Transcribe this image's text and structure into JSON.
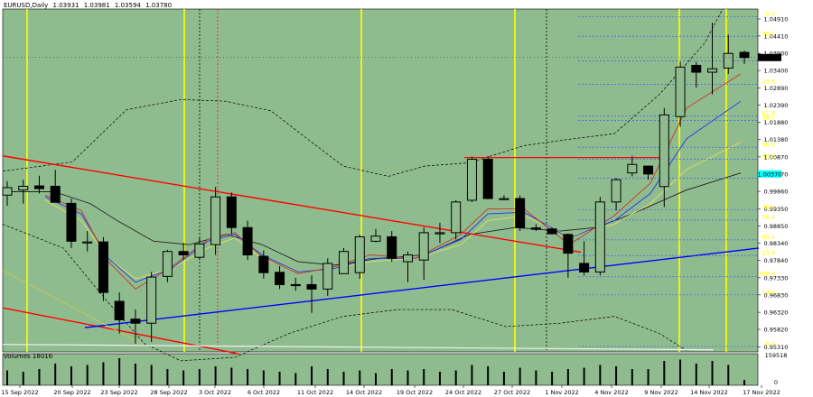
{
  "header": {
    "symbol": "EURUSD,Daily",
    "open": "1.03931",
    "high": "1.03981",
    "low": "1.03594",
    "close": "1.03780"
  },
  "volume": {
    "label": "Volumes",
    "value": "18016",
    "axis_max": "159518",
    "axis_min": "0"
  },
  "colors": {
    "background": "#8fbc8f",
    "candle": "#000000",
    "trendline_down": "#ff0000",
    "trendline_up": "#0000ff",
    "fib_line": "#3a5ff0",
    "fib_label": "#ffff00",
    "vertical_marker": "#ffff00",
    "price_tag": "#000000",
    "current_band": "#00ffff"
  },
  "chart_data": {
    "type": "candlestick",
    "x_labels": [
      "15 Sep 2022",
      "20 Sep 2022",
      "23 Sep 2022",
      "28 Sep 2022",
      "3 Oct 2022",
      "6 Oct 2022",
      "11 Oct 2022",
      "14 Oct 2022",
      "19 Oct 2022",
      "24 Oct 2022",
      "27 Oct 2022",
      "1 Nov 2022",
      "4 Nov 2022",
      "9 Nov 2022",
      "14 Nov 2022",
      "17 Nov 2022"
    ],
    "y_ticks": [
      "1.04910",
      "1.04410",
      "1.03900",
      "1.03400",
      "1.02890",
      "1.02390",
      "1.01880",
      "1.01380",
      "1.00870",
      "1.00370",
      "0.99860",
      "0.99350",
      "0.98850",
      "0.98340",
      "0.97840",
      "0.97330",
      "0.96830",
      "0.96320",
      "0.95820",
      "0.95310"
    ],
    "ylim": [
      0.9516,
      1.052
    ],
    "current_price": "1.03780",
    "highlight_price": "1.00370",
    "candles": [
      {
        "o": 0.9975,
        "h": 1.0016,
        "l": 0.9944,
        "c": 0.9997
      },
      {
        "o": 0.999,
        "h": 1.002,
        "l": 0.995,
        "c": 1.0001
      },
      {
        "o": 1.0002,
        "h": 1.0032,
        "l": 0.998,
        "c": 0.9994
      },
      {
        "o": 1.0001,
        "h": 1.0049,
        "l": 0.9955,
        "c": 0.9954
      },
      {
        "o": 0.9951,
        "h": 0.9965,
        "l": 0.982,
        "c": 0.984
      },
      {
        "o": 0.9838,
        "h": 0.987,
        "l": 0.981,
        "c": 0.9838
      },
      {
        "o": 0.9838,
        "h": 0.9852,
        "l": 0.9665,
        "c": 0.969
      },
      {
        "o": 0.9664,
        "h": 0.969,
        "l": 0.957,
        "c": 0.961
      },
      {
        "o": 0.9612,
        "h": 0.964,
        "l": 0.954,
        "c": 0.96
      },
      {
        "o": 0.96,
        "h": 0.975,
        "l": 0.9545,
        "c": 0.9735
      },
      {
        "o": 0.9737,
        "h": 0.9815,
        "l": 0.972,
        "c": 0.981
      },
      {
        "o": 0.981,
        "h": 0.9835,
        "l": 0.9785,
        "c": 0.98
      },
      {
        "o": 0.9793,
        "h": 0.985,
        "l": 0.9785,
        "c": 0.9832
      },
      {
        "o": 0.983,
        "h": 0.9999,
        "l": 0.98,
        "c": 0.997
      },
      {
        "o": 0.997,
        "h": 0.9983,
        "l": 0.986,
        "c": 0.988
      },
      {
        "o": 0.988,
        "h": 0.99,
        "l": 0.9785,
        "c": 0.98
      },
      {
        "o": 0.9796,
        "h": 0.9813,
        "l": 0.9731,
        "c": 0.9748
      },
      {
        "o": 0.9749,
        "h": 0.9767,
        "l": 0.97,
        "c": 0.9713
      },
      {
        "o": 0.9713,
        "h": 0.9733,
        "l": 0.9695,
        "c": 0.971
      },
      {
        "o": 0.9713,
        "h": 0.974,
        "l": 0.963,
        "c": 0.97
      },
      {
        "o": 0.97,
        "h": 0.979,
        "l": 0.968,
        "c": 0.9775
      },
      {
        "o": 0.9745,
        "h": 0.982,
        "l": 0.9745,
        "c": 0.981
      },
      {
        "o": 0.9748,
        "h": 0.9859,
        "l": 0.973,
        "c": 0.9853
      },
      {
        "o": 0.984,
        "h": 0.9876,
        "l": 0.9837,
        "c": 0.9855
      },
      {
        "o": 0.9853,
        "h": 0.987,
        "l": 0.978,
        "c": 0.979
      },
      {
        "o": 0.978,
        "h": 0.981,
        "l": 0.972,
        "c": 0.98
      },
      {
        "o": 0.9785,
        "h": 0.988,
        "l": 0.9727,
        "c": 0.9865
      },
      {
        "o": 0.9863,
        "h": 0.9894,
        "l": 0.9835,
        "c": 0.9865
      },
      {
        "o": 0.9865,
        "h": 0.996,
        "l": 0.9845,
        "c": 0.9955
      },
      {
        "o": 0.996,
        "h": 1.0088,
        "l": 0.9955,
        "c": 1.008
      },
      {
        "o": 1.008,
        "h": 1.009,
        "l": 0.9963,
        "c": 0.9965
      },
      {
        "o": 0.9963,
        "h": 0.9975,
        "l": 0.996,
        "c": 0.9965
      },
      {
        "o": 0.9965,
        "h": 0.9974,
        "l": 0.987,
        "c": 0.988
      },
      {
        "o": 0.9879,
        "h": 0.989,
        "l": 0.987,
        "c": 0.9875
      },
      {
        "o": 0.9876,
        "h": 0.988,
        "l": 0.986,
        "c": 0.9862
      },
      {
        "o": 0.986,
        "h": 0.9863,
        "l": 0.9733,
        "c": 0.9805
      },
      {
        "o": 0.9775,
        "h": 0.984,
        "l": 0.974,
        "c": 0.975
      },
      {
        "o": 0.975,
        "h": 0.997,
        "l": 0.974,
        "c": 0.9955
      },
      {
        "o": 0.9955,
        "h": 1.0025,
        "l": 0.993,
        "c": 1.002
      },
      {
        "o": 1.004,
        "h": 1.009,
        "l": 1.003,
        "c": 1.0065
      },
      {
        "o": 1.006,
        "h": 1.006,
        "l": 1.002,
        "c": 1.0037
      },
      {
        "o": 1.0,
        "h": 1.023,
        "l": 0.994,
        "c": 1.021
      },
      {
        "o": 1.0205,
        "h": 1.0365,
        "l": 1.0175,
        "c": 1.035
      },
      {
        "o": 1.0355,
        "h": 1.0365,
        "l": 1.029,
        "c": 1.0335
      },
      {
        "o": 1.0335,
        "h": 1.048,
        "l": 1.027,
        "c": 1.0345
      },
      {
        "o": 1.0347,
        "h": 1.0445,
        "l": 1.033,
        "c": 1.039
      },
      {
        "o": 1.0393,
        "h": 1.0398,
        "l": 1.0359,
        "c": 1.0378
      }
    ],
    "fibonacci": [
      {
        "label": "0.0",
        "price": 1.0497
      },
      {
        "label": "38.2",
        "price": 1.044
      },
      {
        "label": "14.6",
        "price": 1.0368
      },
      {
        "label": "23.6",
        "price": 1.0299
      },
      {
        "label": "61.8",
        "price": 1.0207
      },
      {
        "label": "38.2",
        "price": 1.0194
      },
      {
        "label": "50.0",
        "price": 1.0115
      },
      {
        "label": "50.0",
        "price": 1.008
      },
      {
        "label": "61.8",
        "price": 1.0025
      },
      {
        "label": "38.2",
        "price": 0.9932
      },
      {
        "label": "76.4",
        "price": 0.9902
      },
      {
        "label": "85.4",
        "price": 0.9844
      },
      {
        "label": "23.6",
        "price": 0.9798
      },
      {
        "label": "100.0",
        "price": 0.9736
      },
      {
        "label": "14.6",
        "price": 0.9683
      },
      {
        "label": "0.0",
        "price": 0.9532
      }
    ]
  }
}
